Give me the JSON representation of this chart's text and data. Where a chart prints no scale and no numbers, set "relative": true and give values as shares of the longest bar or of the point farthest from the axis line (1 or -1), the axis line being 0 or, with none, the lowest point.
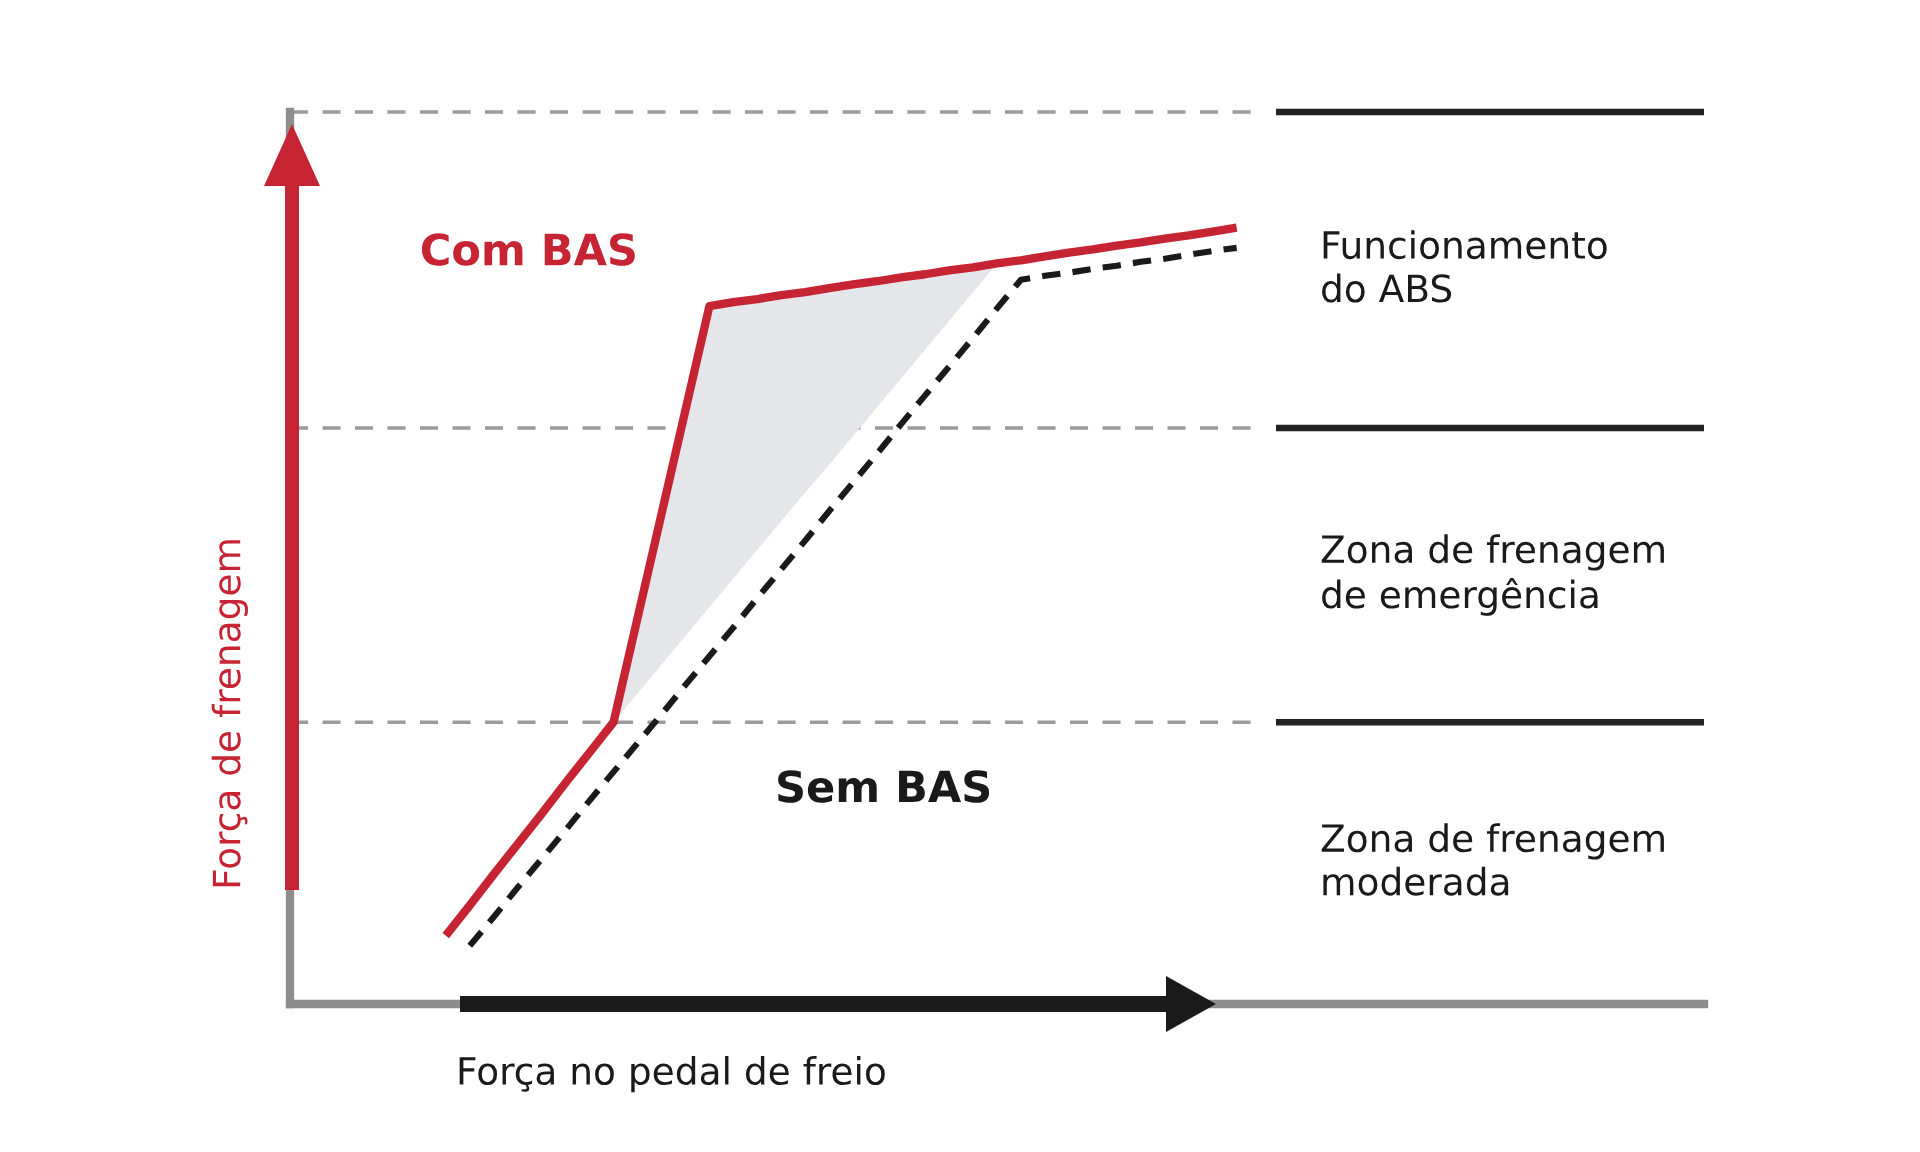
{
  "chart_data": {
    "type": "line",
    "xlabel": "Força no pedal de freio",
    "ylabel": "Força de frenagem",
    "relative": true,
    "categories": [
      null,
      null,
      null,
      null,
      null,
      null,
      null,
      null,
      null,
      null,
      null,
      null,
      null,
      null,
      null,
      null,
      null,
      null,
      null,
      null,
      null,
      null,
      null,
      null,
      null,
      null,
      null,
      null,
      null,
      null,
      null,
      null,
      null,
      null,
      null,
      null,
      null,
      null,
      null,
      null,
      null,
      null,
      null,
      null,
      null,
      null,
      null,
      null,
      null,
      null,
      null,
      null,
      null,
      null,
      null,
      null,
      null,
      null,
      null
    ],
    "series": [
      {
        "name": "Com BAS",
        "color": "#c62433",
        "line_style": "solid",
        "values": [
          null,
          null,
          null,
          null,
          null,
          null,
          0.088,
          0.127,
          0.167,
          0.206,
          0.245,
          0.285,
          0.324,
          0.363,
          0.497,
          0.631,
          0.765,
          0.899,
          0.904,
          0.908,
          0.913,
          0.917,
          0.922,
          0.927,
          0.931,
          0.936,
          0.94,
          0.945,
          0.949,
          0.954,
          0.958,
          0.963,
          0.968,
          0.972,
          0.977,
          0.981,
          0.986,
          0.99,
          0.995,
          1.0,
          null,
          null,
          null,
          null,
          null,
          null,
          null,
          null,
          null,
          null,
          null,
          null,
          null,
          null,
          null,
          null,
          null,
          null,
          null
        ],
        "lower": [
          null,
          null,
          null,
          null,
          null,
          null,
          null,
          null,
          null,
          null,
          null,
          null,
          null,
          0.363,
          0.4,
          0.437,
          0.474,
          0.511,
          0.548,
          0.585,
          0.622,
          0.659,
          0.695,
          0.732,
          0.769,
          0.806,
          0.843,
          0.88,
          0.917,
          0.954,
          null,
          null,
          null,
          null,
          null,
          null,
          null,
          null,
          null,
          null,
          null,
          null,
          null,
          null,
          null,
          null,
          null,
          null,
          null,
          null,
          null,
          null,
          null,
          null,
          null,
          null,
          null,
          null,
          null
        ],
        "upper": [
          null,
          null,
          null,
          null,
          null,
          null,
          null,
          null,
          null,
          null,
          null,
          null,
          null,
          0.363,
          0.497,
          0.631,
          0.765,
          0.899,
          0.904,
          0.908,
          0.913,
          0.917,
          0.922,
          0.927,
          0.931,
          0.936,
          0.94,
          0.945,
          0.949,
          0.954,
          null,
          null,
          null,
          null,
          null,
          null,
          null,
          null,
          null,
          null,
          null,
          null,
          null,
          null,
          null,
          null,
          null,
          null,
          null,
          null,
          null,
          null,
          null,
          null,
          null,
          null,
          null,
          null,
          null
        ]
      },
      {
        "name": "Sem BAS",
        "color": "#1a1a1a",
        "line_style": "dashed",
        "values": [
          null,
          null,
          null,
          null,
          null,
          null,
          null,
          0.075,
          0.112,
          0.15,
          0.187,
          0.224,
          0.262,
          0.299,
          0.336,
          0.373,
          0.411,
          0.448,
          0.485,
          0.523,
          0.56,
          0.597,
          0.635,
          0.672,
          0.709,
          0.747,
          0.784,
          0.821,
          0.858,
          0.896,
          0.933,
          0.938,
          0.942,
          0.947,
          0.951,
          0.956,
          0.96,
          0.965,
          0.97,
          0.974,
          null,
          null,
          null,
          null,
          null,
          null,
          null,
          null,
          null,
          null,
          null,
          null,
          null,
          null,
          null,
          null,
          null,
          null,
          null
        ]
      }
    ],
    "ref_lines": [
      {
        "axis": "y",
        "value": 0.363,
        "color": "#9b9b9b",
        "line_style": "dashed"
      },
      {
        "axis": "y",
        "value": 0.742,
        "color": "#9b9b9b",
        "line_style": "dashed"
      },
      {
        "axis": "y",
        "value": 1.149,
        "color": "#9b9b9b",
        "line_style": "dashed"
      }
    ],
    "annotations": [
      "Funcionamento\ndo ABS",
      "Zona de frenagem\nde emergência",
      "Zona de frenagem\nmoderada"
    ]
  }
}
